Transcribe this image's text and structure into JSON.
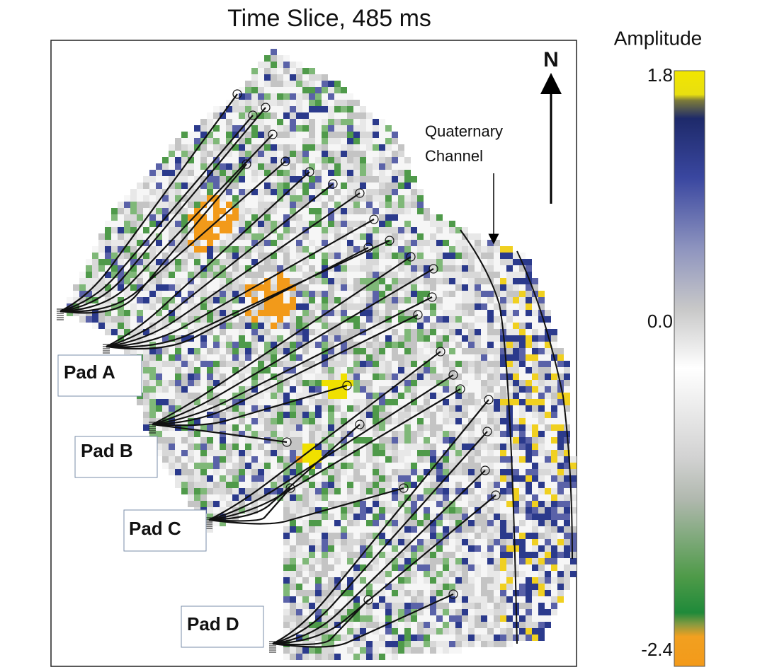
{
  "title": "Time Slice, 485 ms",
  "north": "N",
  "annotation": [
    "Quaternary",
    "Channel"
  ],
  "pads": [
    "Pad A",
    "Pad B",
    "Pad C",
    "Pad D"
  ],
  "colorbar": {
    "label": "Amplitude",
    "ticks": [
      1.8,
      {
        "value": 0,
        "label": "0.0"
      },
      -2.4
    ]
  }
}
